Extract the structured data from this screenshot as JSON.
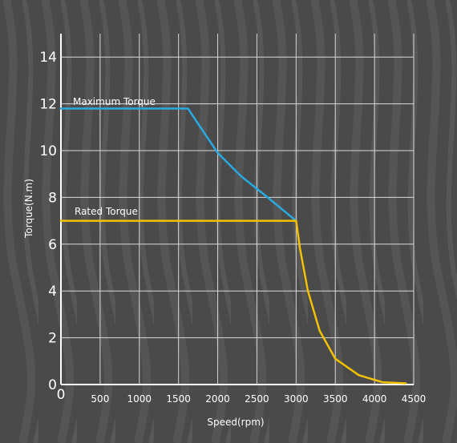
{
  "chart_data": {
    "type": "line",
    "title": "",
    "xlabel": "Speed(rpm)",
    "ylabel": "Torque(N.m)",
    "xlim": [
      0,
      4500
    ],
    "ylim": [
      0,
      15
    ],
    "x_ticks": [
      0,
      500,
      1000,
      1500,
      2000,
      2500,
      3000,
      3500,
      4000,
      4500
    ],
    "y_ticks": [
      0,
      2,
      4,
      6,
      8,
      10,
      12,
      14
    ],
    "grid": true,
    "legend": "inline",
    "series": [
      {
        "name": "Maximum Torque",
        "color": "#2aa9e0",
        "x": [
          0,
          1620,
          1700,
          2000,
          2300,
          2600,
          3000
        ],
        "y": [
          11.8,
          11.8,
          11.4,
          9.9,
          8.9,
          8.1,
          7.0
        ]
      },
      {
        "name": "Rated Torque",
        "color": "#f2c200",
        "x": [
          0,
          3000,
          3050,
          3150,
          3300,
          3500,
          3800,
          4100,
          4400
        ],
        "y": [
          7.0,
          7.0,
          5.8,
          4.0,
          2.3,
          1.1,
          0.4,
          0.1,
          0.05
        ]
      }
    ]
  },
  "colors": {
    "background": "#4a4a4a",
    "grid": "#d9d9d9",
    "axis": "#ffffff",
    "text": "#ffffff"
  }
}
